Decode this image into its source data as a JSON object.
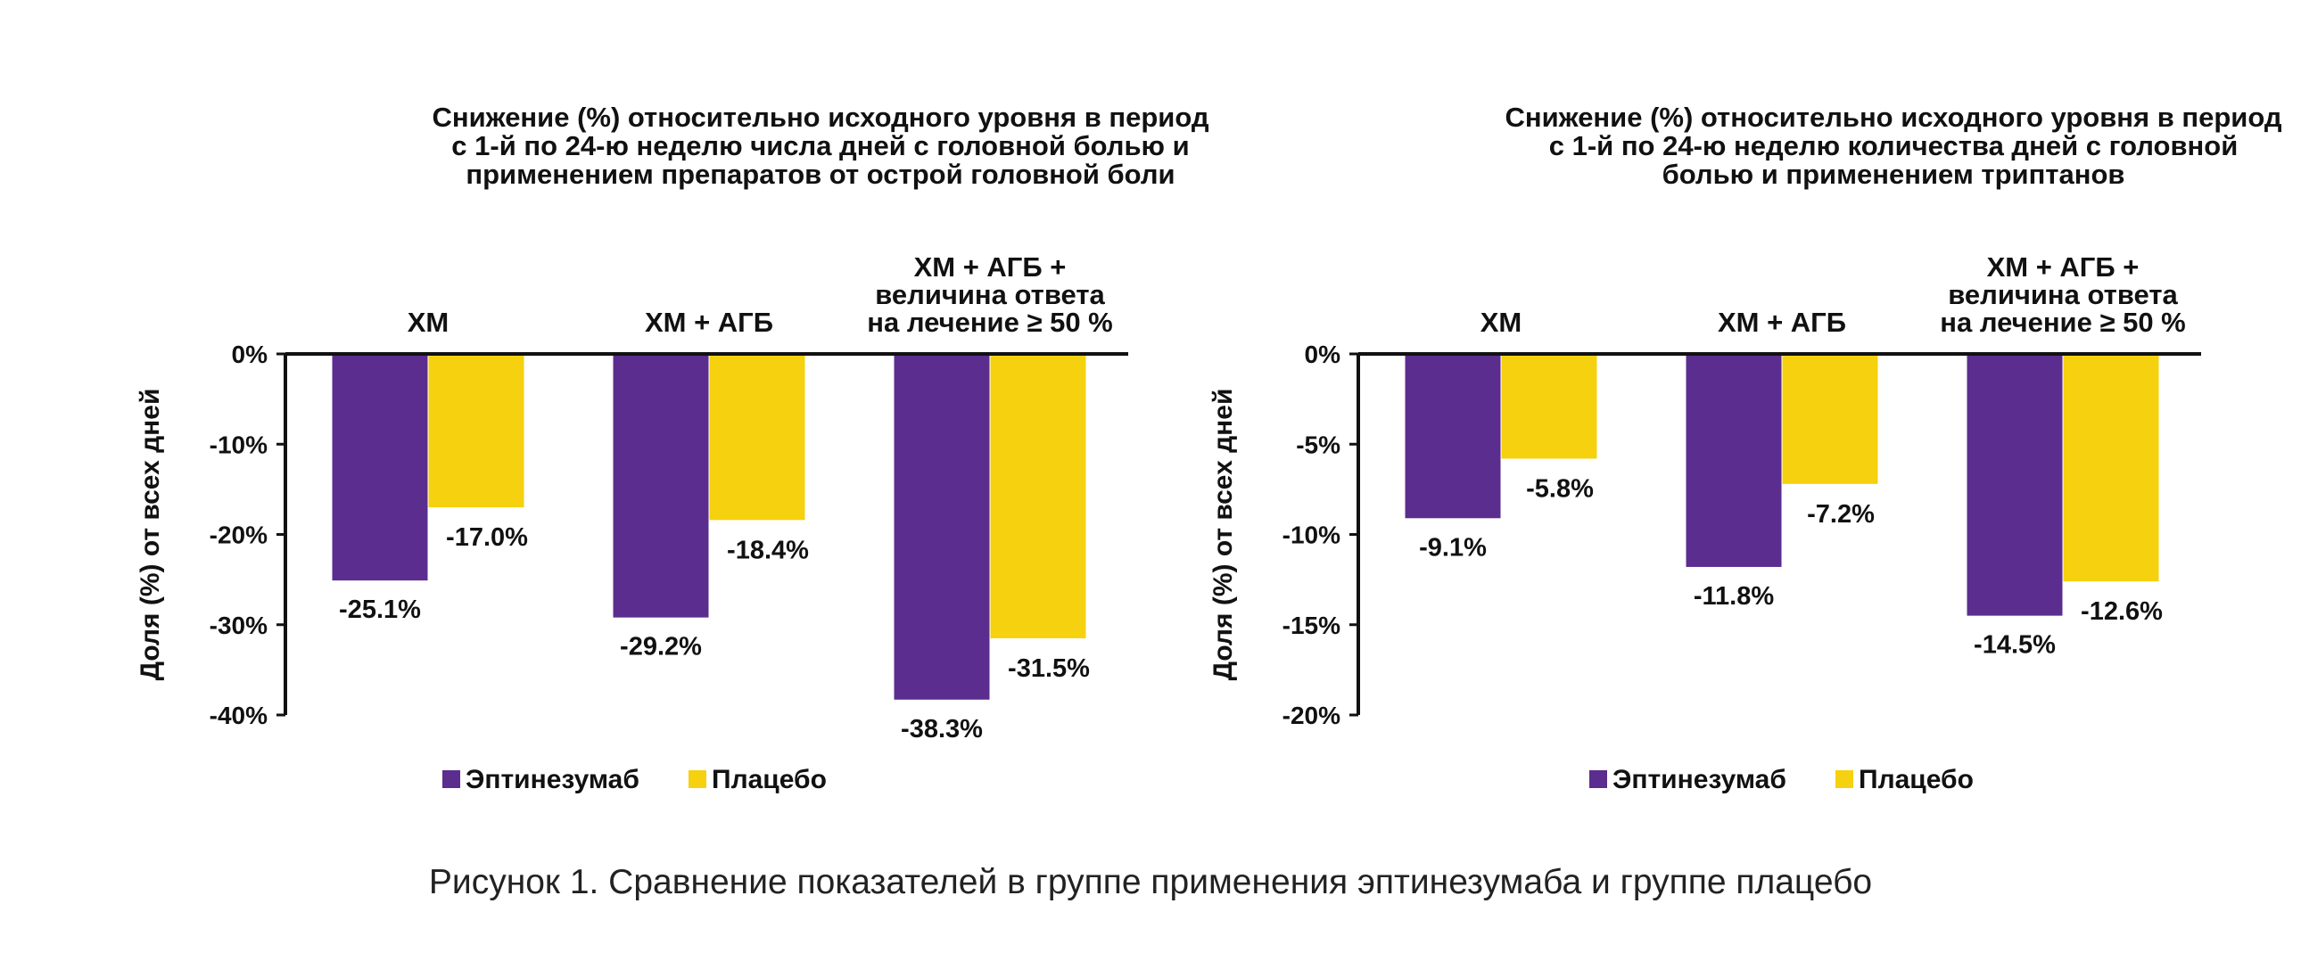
{
  "caption": "Рисунок 1. Сравнение показателей в группе применения эптинезумаба и группе плацебо",
  "colors": {
    "series_1": "#5b2d8e",
    "series_2": "#f5d10f",
    "axis": "#111111"
  },
  "chart_data": [
    {
      "type": "bar",
      "title": [
        "Снижение (%) относительно исходного уровня в период",
        "с 1-й по 24-ю неделю числа дней с головной болью и",
        "применением препаратов от острой головной боли"
      ],
      "ylabel": "Доля (%) от всех дней",
      "categories": [
        [
          "ХМ"
        ],
        [
          "ХМ + АГБ"
        ],
        [
          "ХМ + АГБ +",
          "величина ответа",
          "на лечение ≥ 50 %"
        ]
      ],
      "ylim": [
        -40,
        0
      ],
      "yticks": [
        0,
        -10,
        -20,
        -30,
        -40
      ],
      "ytick_labels": [
        "0%",
        "-10%",
        "-20%",
        "-30%",
        "-40%"
      ],
      "series": [
        {
          "name": "Эптинезумаб",
          "values": [
            -25.1,
            -29.2,
            -38.3
          ],
          "labels": [
            "-25.1%",
            "-29.2%",
            "-38.3%"
          ]
        },
        {
          "name": "Плацебо",
          "values": [
            -17.0,
            -18.4,
            -31.5
          ],
          "labels": [
            "-17.0%",
            "-18.4%",
            "-31.5%"
          ]
        }
      ],
      "legend_position": "bottom"
    },
    {
      "type": "bar",
      "title": [
        "Снижение (%) относительно исходного уровня в период",
        "с 1-й по 24-ю неделю количества дней с головной",
        "болью и применением триптанов"
      ],
      "ylabel": "Доля (%) от всех дней",
      "categories": [
        [
          "ХМ"
        ],
        [
          "ХМ + АГБ"
        ],
        [
          "ХМ + АГБ +",
          "величина ответа",
          "на лечение ≥ 50 %"
        ]
      ],
      "ylim": [
        -20,
        0
      ],
      "yticks": [
        0,
        -5,
        -10,
        -15,
        -20
      ],
      "ytick_labels": [
        "0%",
        "-5%",
        "-10%",
        "-15%",
        "-20%"
      ],
      "series": [
        {
          "name": "Эптинезумаб",
          "values": [
            -9.1,
            -11.8,
            -14.5
          ],
          "labels": [
            "-9.1%",
            "-11.8%",
            "-14.5%"
          ]
        },
        {
          "name": "Плацебо",
          "values": [
            -5.8,
            -7.2,
            -12.6
          ],
          "labels": [
            "-5.8%",
            "-7.2%",
            "-12.6%"
          ]
        }
      ],
      "legend_position": "bottom"
    }
  ]
}
